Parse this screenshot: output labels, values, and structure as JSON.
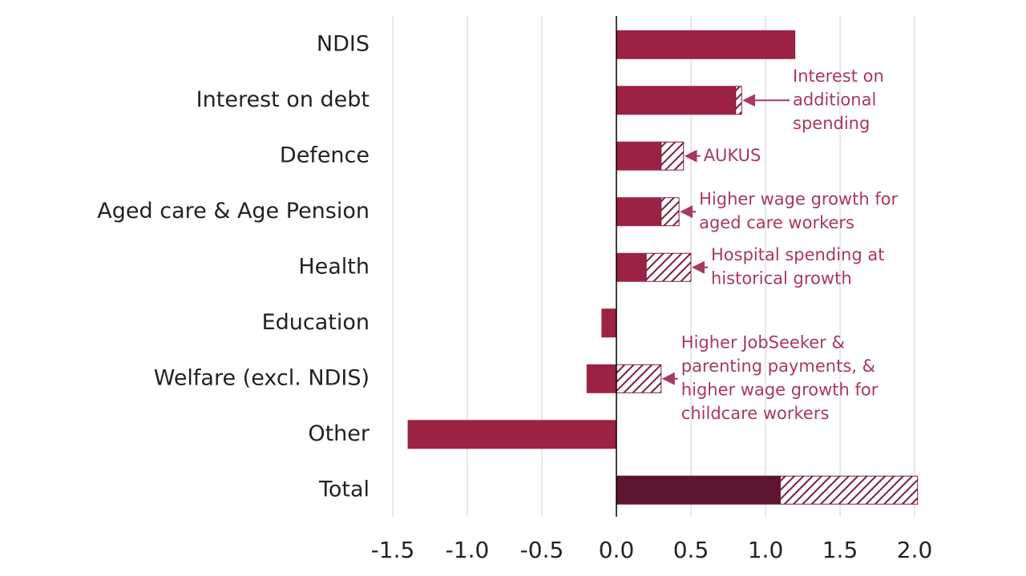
{
  "chart_data": {
    "type": "bar",
    "orientation": "horizontal",
    "categories": [
      "NDIS",
      "Interest on debt",
      "Defence",
      "Aged care & Age Pension",
      "Health",
      "Education",
      "Welfare (excl. NDIS)",
      "Other",
      "Total"
    ],
    "series": [
      {
        "colors": [
          "#9b2242",
          "#9b2242",
          "#9b2242",
          "#9b2242",
          "#9b2242",
          "#9b2242",
          "#9b2242",
          "#9b2242",
          "#5e1531"
        ],
        "values": [
          1.2,
          0.8,
          0.3,
          0.3,
          0.2,
          -0.1,
          -0.2,
          -1.4,
          1.1
        ]
      },
      {
        "color": "#7a1f3d",
        "hatched": true,
        "values": [
          null,
          0.04,
          0.15,
          0.12,
          0.3,
          null,
          0.3,
          null,
          0.92
        ]
      }
    ],
    "annotations": [
      null,
      [
        "Interest on",
        "additional",
        "spending"
      ],
      [
        "AUKUS"
      ],
      [
        "Higher wage growth for",
        "aged care workers"
      ],
      [
        "Hospital spending at",
        "historical growth"
      ],
      null,
      [
        "Higher JobSeeker &",
        "parenting payments, &",
        "higher wage growth for",
        "childcare workers"
      ],
      null,
      null
    ],
    "annotation_color": "#a8385e",
    "xlim": [
      -1.5,
      2.0
    ],
    "xticks": [
      {
        "value": -1.5,
        "label": "-1.5"
      },
      {
        "value": -1.0,
        "label": "-1.0"
      },
      -0.5,
      {
        "value": 0.0,
        "label": "0.0"
      },
      0.5,
      {
        "value": 1.0,
        "label": "1.0"
      },
      1.5,
      {
        "value": 2.0,
        "label": "2.0"
      }
    ],
    "grid": true
  }
}
